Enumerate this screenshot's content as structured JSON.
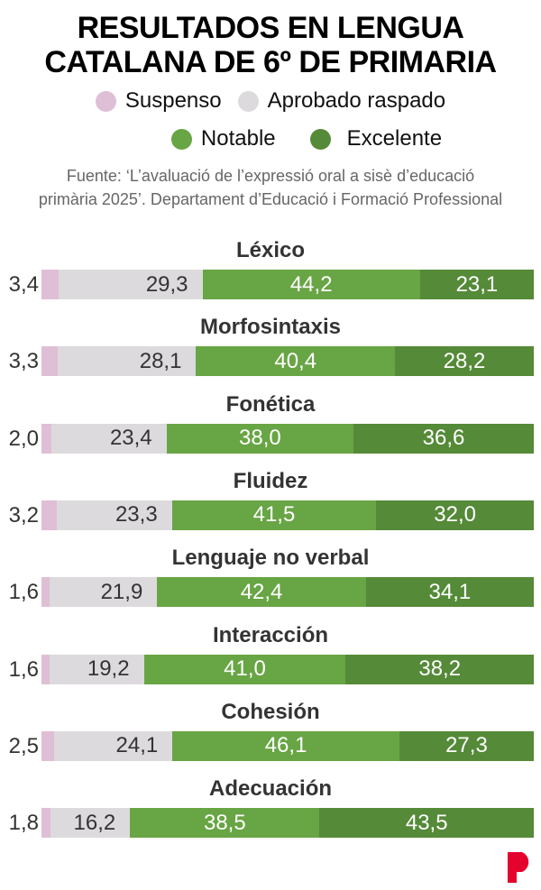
{
  "title_lines": [
    "RESULTADOS EN LENGUA",
    "CATALANA  DE 6º DE PRIMARIA"
  ],
  "source_lines": [
    "Fuente: ‘L’avaluació de l’expressió oral a sisè d’educació",
    "primària 2025’. Departament d’Educació i Formació Professional"
  ],
  "brand_logo": "P",
  "chart_data": {
    "type": "bar",
    "orientation": "horizontal",
    "stacked": true,
    "categories": [
      "Léxico",
      "Morfosintaxis",
      "Fonética",
      "Fluidez",
      "Lenguaje no verbal",
      "Interacción",
      "Cohesión",
      "Adecuación"
    ],
    "series": [
      {
        "name": "Suspenso",
        "color": "#dfbfd5",
        "values": [
          "3,4",
          "3,3",
          "2,0",
          "3,2",
          "1,6",
          "1,6",
          "2,5",
          "1,8"
        ]
      },
      {
        "name": "Aprobado raspado",
        "color": "#dcdadd",
        "values": [
          "29,3",
          "28,1",
          "23,4",
          "23,3",
          "21,9",
          "19,2",
          "24,1",
          "16,2"
        ]
      },
      {
        "name": "Notable",
        "color": "#68a544",
        "values": [
          "44,2",
          "40,4",
          "38,0",
          "41,5",
          "42,4",
          "41,0",
          "46,1",
          "38,5"
        ]
      },
      {
        "name": "Excelente",
        "color": "#558a38",
        "values": [
          "23,1",
          "28,2",
          "36,6",
          "32,0",
          "34,1",
          "38,2",
          "27,3",
          "43,5"
        ]
      }
    ],
    "legend_position": "top-center",
    "unit": "%"
  }
}
